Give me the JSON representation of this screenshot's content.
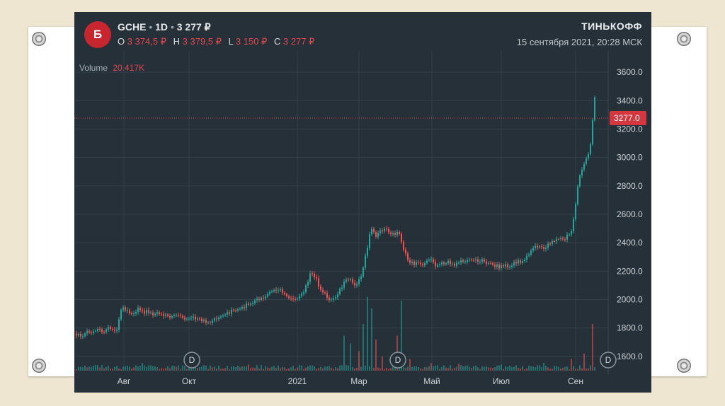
{
  "header": {
    "logo_text": "Б",
    "ticker": "GCHE",
    "dot1": "•",
    "interval": "1D",
    "dot2": "•",
    "last": "3 277 ₽",
    "o_label": "O",
    "o_value": "3 374,5 ₽",
    "h_label": "H",
    "h_value": "3 379,5 ₽",
    "l_label": "L",
    "l_value": "3 150 ₽",
    "c_label": "C",
    "c_value": "3 277 ₽",
    "brand": "ТИНЬКОФФ",
    "datetime": "15 сентября 2021, 20:28 МСК"
  },
  "volume": {
    "label": "Volume",
    "value": "20.417K"
  },
  "dividend_marker": "D",
  "colors": {
    "up": "#26a69a",
    "down": "#ef5350",
    "background": "#253038",
    "accent": "#c8262f"
  },
  "chart_data": {
    "type": "candlestick",
    "y_ticks": [
      "3600.0",
      "3400.0",
      "3200.0",
      "3000.0",
      "2800.0",
      "2600.0",
      "2400.0",
      "2200.0",
      "2000.0",
      "1800.0",
      "1600.0"
    ],
    "ylim": [
      1500,
      3700
    ],
    "x_ticks": [
      "Авг",
      "Окт",
      "2021",
      "Мар",
      "Май",
      "Июл",
      "Сен"
    ],
    "current_price_label": "3277.0",
    "current_price": 3277,
    "close_path": [
      [
        0,
        1760
      ],
      [
        8,
        1750
      ],
      [
        15,
        1770
      ],
      [
        22,
        1765
      ],
      [
        30,
        1790
      ],
      [
        38,
        1770
      ],
      [
        45,
        1800
      ],
      [
        52,
        1790
      ],
      [
        58,
        1800
      ],
      [
        64,
        1950
      ],
      [
        70,
        1920
      ],
      [
        78,
        1900
      ],
      [
        86,
        1930
      ],
      [
        94,
        1910
      ],
      [
        102,
        1920
      ],
      [
        110,
        1895
      ],
      [
        118,
        1905
      ],
      [
        126,
        1890
      ],
      [
        134,
        1880
      ],
      [
        142,
        1890
      ],
      [
        150,
        1870
      ],
      [
        158,
        1860
      ],
      [
        166,
        1870
      ],
      [
        174,
        1860
      ],
      [
        180,
        1850
      ],
      [
        186,
        1840
      ],
      [
        190,
        1830
      ],
      [
        196,
        1870
      ],
      [
        202,
        1880
      ],
      [
        208,
        1890
      ],
      [
        214,
        1900
      ],
      [
        220,
        1920
      ],
      [
        228,
        1930
      ],
      [
        236,
        1950
      ],
      [
        244,
        1970
      ],
      [
        252,
        1990
      ],
      [
        260,
        2010
      ],
      [
        268,
        2030
      ],
      [
        276,
        2060
      ],
      [
        284,
        2080
      ],
      [
        290,
        2060
      ],
      [
        296,
        2030
      ],
      [
        302,
        2000
      ],
      [
        308,
        1990
      ],
      [
        314,
        2010
      ],
      [
        320,
        2050
      ],
      [
        326,
        2120
      ],
      [
        332,
        2200
      ],
      [
        338,
        2150
      ],
      [
        344,
        2080
      ],
      [
        350,
        2050
      ],
      [
        356,
        2010
      ],
      [
        362,
        1990
      ],
      [
        368,
        2040
      ],
      [
        374,
        2090
      ],
      [
        380,
        2130
      ],
      [
        386,
        2150
      ],
      [
        392,
        2110
      ],
      [
        398,
        2120
      ],
      [
        404,
        2200
      ],
      [
        410,
        2350
      ],
      [
        414,
        2450
      ],
      [
        418,
        2520
      ],
      [
        422,
        2440
      ],
      [
        428,
        2470
      ],
      [
        434,
        2500
      ],
      [
        440,
        2480
      ],
      [
        446,
        2460
      ],
      [
        452,
        2470
      ],
      [
        456,
        2460
      ],
      [
        460,
        2380
      ],
      [
        466,
        2300
      ],
      [
        472,
        2260
      ],
      [
        478,
        2250
      ],
      [
        484,
        2270
      ],
      [
        490,
        2240
      ],
      [
        496,
        2280
      ],
      [
        502,
        2270
      ],
      [
        508,
        2240
      ],
      [
        514,
        2260
      ],
      [
        520,
        2250
      ],
      [
        526,
        2270
      ],
      [
        532,
        2240
      ],
      [
        538,
        2250
      ],
      [
        544,
        2270
      ],
      [
        550,
        2260
      ],
      [
        556,
        2280
      ],
      [
        562,
        2270
      ],
      [
        568,
        2280
      ],
      [
        574,
        2270
      ],
      [
        580,
        2260
      ],
      [
        586,
        2250
      ],
      [
        592,
        2240
      ],
      [
        598,
        2230
      ],
      [
        604,
        2240
      ],
      [
        610,
        2230
      ],
      [
        616,
        2250
      ],
      [
        622,
        2270
      ],
      [
        628,
        2260
      ],
      [
        634,
        2280
      ],
      [
        640,
        2330
      ],
      [
        646,
        2360
      ],
      [
        652,
        2380
      ],
      [
        658,
        2360
      ],
      [
        664,
        2380
      ],
      [
        670,
        2400
      ],
      [
        676,
        2410
      ],
      [
        682,
        2430
      ],
      [
        688,
        2420
      ],
      [
        694,
        2450
      ],
      [
        700,
        2480
      ],
      [
        704,
        2640
      ],
      [
        708,
        2800
      ],
      [
        712,
        2900
      ],
      [
        716,
        2950
      ],
      [
        720,
        2990
      ],
      [
        724,
        3040
      ],
      [
        728,
        3150
      ],
      [
        731,
        3500
      ],
      [
        734,
        3277
      ]
    ],
    "volume_spikes": [
      [
        92,
        0.1
      ],
      [
        140,
        0.05
      ],
      [
        244,
        0.08
      ],
      [
        378,
        0.45
      ],
      [
        388,
        0.35
      ],
      [
        398,
        0.25
      ],
      [
        406,
        0.6
      ],
      [
        412,
        0.95
      ],
      [
        416,
        0.8
      ],
      [
        422,
        0.4
      ],
      [
        432,
        0.18
      ],
      [
        454,
        0.45
      ],
      [
        460,
        0.9
      ],
      [
        470,
        0.15
      ],
      [
        500,
        0.1
      ],
      [
        540,
        0.09
      ],
      [
        600,
        0.08
      ],
      [
        660,
        0.1
      ],
      [
        700,
        0.15
      ],
      [
        716,
        0.22
      ],
      [
        728,
        0.6
      ],
      [
        734,
        0.35
      ]
    ]
  }
}
